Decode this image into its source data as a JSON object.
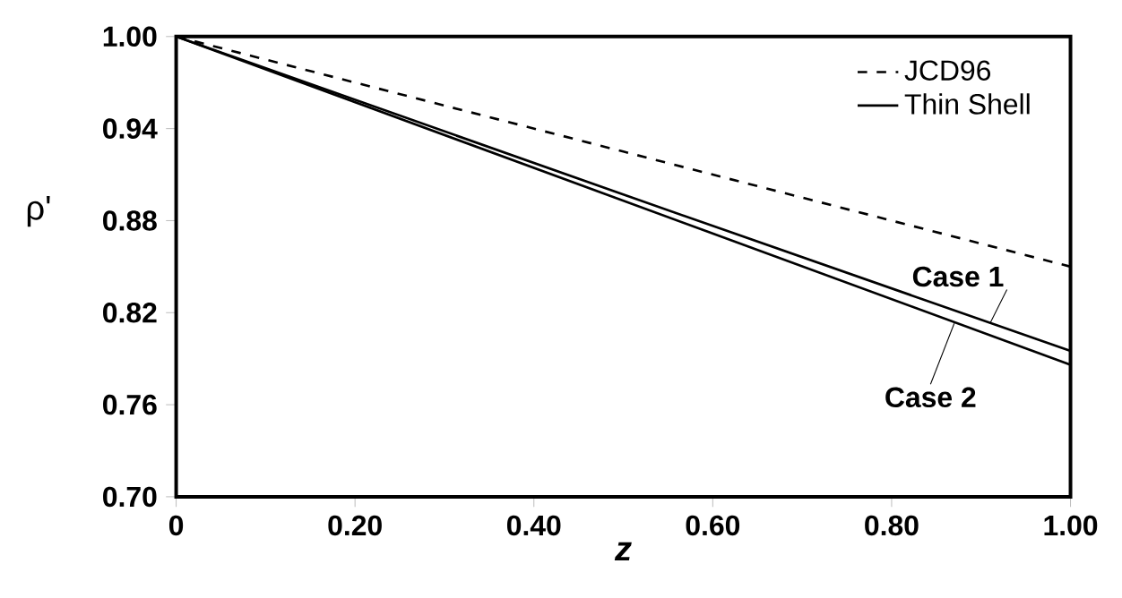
{
  "chart_data": {
    "type": "line",
    "xlabel": "z",
    "ylabel": "ρ'",
    "xlim": [
      0,
      1
    ],
    "ylim": [
      0.7,
      1.0
    ],
    "xticks": [
      {
        "value": 0,
        "label": "0"
      },
      {
        "value": 0.2,
        "label": "0.20"
      },
      {
        "value": 0.4,
        "label": "0.40"
      },
      {
        "value": 0.6,
        "label": "0.60"
      },
      {
        "value": 0.8,
        "label": "0.80"
      },
      {
        "value": 1.0,
        "label": "1.00"
      }
    ],
    "yticks": [
      {
        "value": 0.7,
        "label": "0.70"
      },
      {
        "value": 0.76,
        "label": "0.76"
      },
      {
        "value": 0.82,
        "label": "0.82"
      },
      {
        "value": 0.88,
        "label": "0.88"
      },
      {
        "value": 0.94,
        "label": "0.94"
      },
      {
        "value": 1.0,
        "label": "1.00"
      }
    ],
    "x": [
      0,
      0.5,
      1
    ],
    "series": [
      {
        "name": "JCD96",
        "color": "#000000",
        "line_style": "dashed",
        "values": [
          1.0,
          0.925,
          0.85
        ]
      },
      {
        "name": "Thin Shell",
        "color": "#000000",
        "line_style": "solid",
        "values": [
          1.0,
          0.897,
          0.795
        ]
      },
      {
        "color": "#000000",
        "line_style": "solid",
        "values": [
          1.0,
          0.893,
          0.786
        ]
      }
    ],
    "annotations": [
      {
        "text": "Case 1",
        "x": 0.91,
        "y": 0.813
      },
      {
        "text": "Case 2",
        "x": 0.87,
        "y": 0.813
      }
    ],
    "legend": "top right",
    "marker": "none",
    "grid": false
  }
}
